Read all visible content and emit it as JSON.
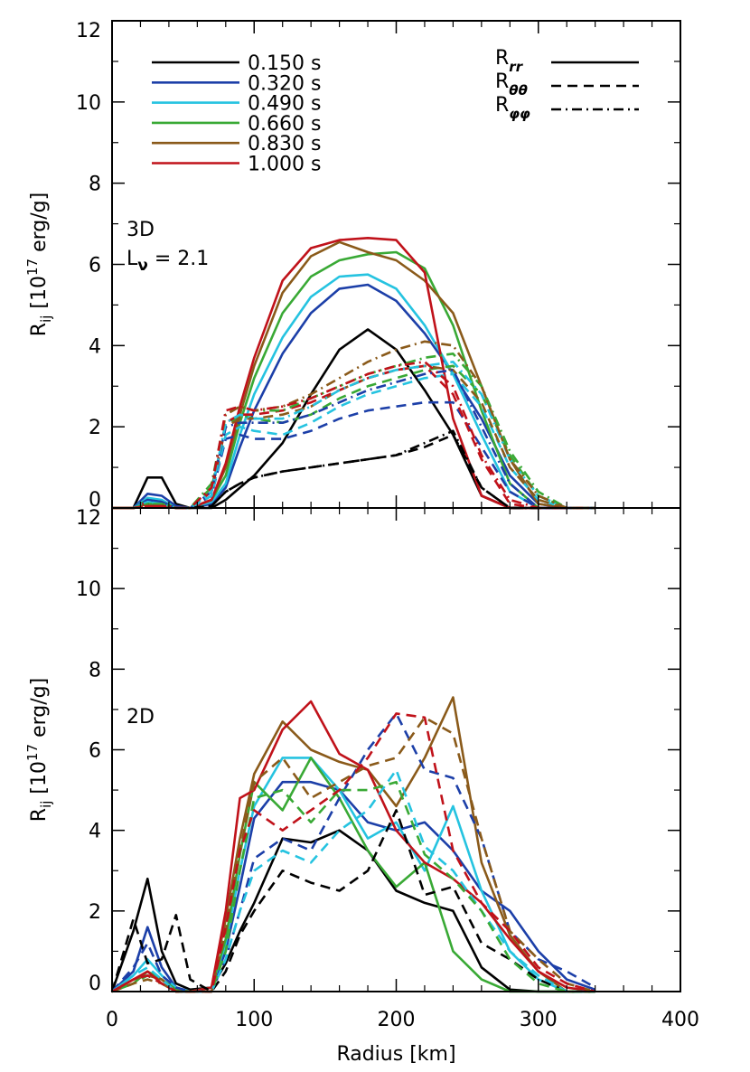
{
  "chart_data": [
    {
      "type": "line",
      "panel_label": "3D",
      "annotation": {
        "main": "L",
        "sub": "ν",
        "rest": " = 2.1"
      },
      "y_label": {
        "main": "R",
        "sub": "ij",
        "mid": " [10",
        "sup": "17",
        "end": " erg/g]"
      },
      "xlim": [
        0,
        400
      ],
      "xticks": [
        0,
        100,
        200,
        300,
        400
      ],
      "show_xtick_labels": false,
      "ylim": [
        0,
        12
      ],
      "yticks": [
        0,
        2,
        4,
        6,
        8,
        10,
        12
      ],
      "line_styles": [
        {
          "label": "R",
          "sub": "rr",
          "dash": "solid"
        },
        {
          "label": "R",
          "sub": "θθ",
          "dash": "dashed"
        },
        {
          "label": "R",
          "sub": "φφ",
          "dash": "dashdot"
        }
      ],
      "x": [
        0,
        15,
        25,
        35,
        45,
        55,
        70,
        80,
        90,
        100,
        120,
        140,
        160,
        180,
        200,
        220,
        240,
        260,
        280,
        300,
        320,
        340
      ],
      "series": [
        {
          "name": "0.150 s",
          "color": "#000000",
          "dash": "solid",
          "values": [
            0,
            0,
            0.75,
            0.75,
            0.1,
            0,
            0,
            0.2,
            0.5,
            0.8,
            1.6,
            2.8,
            3.9,
            4.4,
            3.9,
            2.9,
            1.8,
            0.3,
            0,
            0,
            0,
            0
          ]
        },
        {
          "name": "0.320 s",
          "color": "#1c3fa8",
          "dash": "solid",
          "values": [
            0,
            0,
            0.35,
            0.3,
            0.05,
            0,
            0.1,
            0.5,
            1.5,
            2.4,
            3.8,
            4.8,
            5.4,
            5.5,
            5.1,
            4.3,
            3.3,
            2.2,
            0.8,
            0.1,
            0,
            0
          ]
        },
        {
          "name": "0.490 s",
          "color": "#25c3e0",
          "dash": "solid",
          "values": [
            0,
            0,
            0.25,
            0.2,
            0,
            0,
            0.15,
            0.6,
            1.8,
            2.8,
            4.2,
            5.2,
            5.7,
            5.75,
            5.4,
            4.5,
            3.3,
            1.8,
            0.4,
            0,
            0,
            0
          ]
        },
        {
          "name": "0.660 s",
          "color": "#39a935",
          "dash": "solid",
          "values": [
            0,
            0,
            0.2,
            0.15,
            0,
            0,
            0.2,
            0.8,
            2.1,
            3.2,
            4.8,
            5.7,
            6.1,
            6.25,
            6.3,
            5.9,
            4.5,
            2.4,
            0.6,
            0,
            0,
            0
          ]
        },
        {
          "name": "0.830 s",
          "color": "#8a5a1a",
          "dash": "solid",
          "values": [
            0,
            0,
            0.1,
            0.1,
            0,
            0,
            0.2,
            1.0,
            2.3,
            3.5,
            5.3,
            6.2,
            6.55,
            6.3,
            6.1,
            5.6,
            4.8,
            3.0,
            1.2,
            0.1,
            0,
            0
          ]
        },
        {
          "name": "1.000 s",
          "color": "#c0121a",
          "dash": "solid",
          "values": [
            0,
            0,
            0.15,
            0.1,
            0,
            0,
            0.2,
            1.1,
            2.5,
            3.7,
            5.6,
            6.4,
            6.6,
            6.65,
            6.6,
            5.8,
            2.2,
            0.3,
            0,
            0,
            0,
            0
          ]
        },
        {
          "color": "#000000",
          "dash": "dashed",
          "values": [
            0,
            0,
            0.1,
            0.1,
            0,
            0,
            0.05,
            0.4,
            0.6,
            0.75,
            0.9,
            1.0,
            1.1,
            1.2,
            1.3,
            1.5,
            1.8,
            0.5,
            0,
            0,
            0,
            0
          ]
        },
        {
          "color": "#1c3fa8",
          "dash": "dashed",
          "values": [
            0,
            0,
            0.2,
            0.15,
            0,
            0,
            0.3,
            1.7,
            1.8,
            1.7,
            1.7,
            1.9,
            2.2,
            2.4,
            2.5,
            2.6,
            2.6,
            1.5,
            0.4,
            0,
            0,
            0
          ]
        },
        {
          "color": "#25c3e0",
          "dash": "dashed",
          "values": [
            0,
            0,
            0.15,
            0.1,
            0,
            0,
            0.3,
            1.8,
            2.0,
            1.9,
            1.8,
            2.1,
            2.5,
            2.8,
            3.0,
            3.2,
            3.3,
            2.5,
            1.0,
            0.2,
            0,
            0
          ]
        },
        {
          "color": "#39a935",
          "dash": "dashed",
          "values": [
            0,
            0,
            0.1,
            0.1,
            0,
            0,
            0.5,
            2.0,
            2.3,
            2.2,
            2.1,
            2.3,
            2.7,
            3.0,
            3.2,
            3.4,
            3.5,
            2.8,
            1.3,
            0.3,
            0,
            0
          ]
        },
        {
          "color": "#8a5a1a",
          "dash": "dashed",
          "values": [
            0,
            0,
            0.05,
            0.05,
            0,
            0,
            0.4,
            2.0,
            2.2,
            2.2,
            2.3,
            2.5,
            2.9,
            3.2,
            3.4,
            3.5,
            3.4,
            2.6,
            1.0,
            0.2,
            0,
            0
          ]
        },
        {
          "color": "#c0121a",
          "dash": "dashed",
          "values": [
            0,
            0,
            0.05,
            0.05,
            0,
            0,
            0.4,
            2.1,
            2.3,
            2.3,
            2.4,
            2.6,
            2.9,
            3.2,
            3.4,
            3.5,
            2.8,
            1.2,
            0.1,
            0,
            0,
            0
          ]
        },
        {
          "color": "#000000",
          "dash": "dashdot",
          "values": [
            0,
            0,
            0.1,
            0.1,
            0,
            0,
            0.05,
            0.4,
            0.6,
            0.75,
            0.9,
            1.0,
            1.1,
            1.2,
            1.3,
            1.6,
            1.9,
            0.5,
            0,
            0,
            0,
            0
          ]
        },
        {
          "color": "#1c3fa8",
          "dash": "dashdot",
          "values": [
            0,
            0,
            0.2,
            0.15,
            0,
            0,
            0.4,
            2.0,
            2.1,
            2.1,
            2.1,
            2.3,
            2.6,
            2.9,
            3.1,
            3.3,
            3.4,
            2.0,
            0.6,
            0,
            0,
            0
          ]
        },
        {
          "color": "#25c3e0",
          "dash": "dashdot",
          "values": [
            0,
            0,
            0.15,
            0.1,
            0,
            0,
            0.4,
            2.1,
            2.3,
            2.2,
            2.2,
            2.5,
            2.9,
            3.2,
            3.4,
            3.5,
            3.6,
            2.8,
            1.2,
            0.3,
            0,
            0
          ]
        },
        {
          "color": "#39a935",
          "dash": "dashdot",
          "values": [
            0,
            0,
            0.1,
            0.1,
            0,
            0,
            0.6,
            2.3,
            2.5,
            2.4,
            2.4,
            2.7,
            3.0,
            3.3,
            3.5,
            3.7,
            3.8,
            3.0,
            1.4,
            0.4,
            0,
            0
          ]
        },
        {
          "color": "#8a5a1a",
          "dash": "dashdot",
          "values": [
            0,
            0,
            0.05,
            0.05,
            0,
            0,
            0.5,
            2.3,
            2.5,
            2.4,
            2.5,
            2.8,
            3.2,
            3.6,
            3.9,
            4.1,
            4.0,
            3.0,
            1.2,
            0.3,
            0,
            0
          ]
        },
        {
          "color": "#c0121a",
          "dash": "dashdot",
          "values": [
            0,
            0,
            0.05,
            0.05,
            0,
            0,
            0.5,
            2.4,
            2.5,
            2.4,
            2.5,
            2.7,
            3.0,
            3.3,
            3.5,
            3.6,
            3.0,
            1.3,
            0.2,
            0,
            0,
            0
          ]
        }
      ]
    },
    {
      "type": "line",
      "panel_label": "2D",
      "y_label": {
        "main": "R",
        "sub": "ij",
        "mid": " [10",
        "sup": "17",
        "end": " erg/g]"
      },
      "x_label": "Radius [km]",
      "xlim": [
        0,
        400
      ],
      "xticks": [
        0,
        100,
        200,
        300,
        400
      ],
      "show_xtick_labels": true,
      "ylim": [
        0,
        12
      ],
      "yticks": [
        0,
        2,
        4,
        6,
        8,
        10,
        12
      ],
      "x": [
        0,
        15,
        25,
        35,
        45,
        55,
        70,
        80,
        90,
        100,
        120,
        140,
        160,
        180,
        200,
        220,
        240,
        260,
        280,
        300,
        320,
        340
      ],
      "series": [
        {
          "color": "#000000",
          "dash": "solid",
          "values": [
            0,
            1.5,
            2.8,
            1.0,
            0.2,
            0.05,
            0.1,
            0.7,
            1.5,
            2.2,
            3.8,
            3.7,
            4.0,
            3.5,
            2.5,
            2.2,
            2.0,
            0.6,
            0.05,
            0,
            0,
            0
          ]
        },
        {
          "color": "#1c3fa8",
          "dash": "solid",
          "values": [
            0,
            0.5,
            1.6,
            0.6,
            0.1,
            0,
            0.1,
            1.0,
            2.6,
            4.3,
            5.2,
            5.2,
            5.0,
            4.2,
            4.0,
            4.2,
            3.5,
            2.5,
            2.0,
            1.0,
            0.3,
            0.05
          ]
        },
        {
          "color": "#25c3e0",
          "dash": "solid",
          "values": [
            0,
            0.4,
            0.8,
            0.4,
            0.1,
            0,
            0.1,
            1.2,
            3.0,
            4.6,
            5.8,
            5.8,
            5.0,
            3.8,
            4.2,
            3.0,
            4.6,
            2.5,
            1.0,
            0.3,
            0,
            0
          ]
        },
        {
          "color": "#39a935",
          "dash": "solid",
          "values": [
            0,
            0.2,
            0.5,
            0.3,
            0.05,
            0,
            0.1,
            1.3,
            3.4,
            5.2,
            4.5,
            5.8,
            4.8,
            3.5,
            2.6,
            3.2,
            1.0,
            0.3,
            0,
            0,
            0,
            0
          ]
        },
        {
          "color": "#8a5a1a",
          "dash": "solid",
          "values": [
            0,
            0.3,
            0.4,
            0.3,
            0,
            0,
            0.1,
            1.8,
            3.8,
            5.4,
            6.7,
            6.0,
            5.7,
            5.5,
            4.6,
            5.8,
            7.3,
            3.2,
            1.4,
            0.5,
            0,
            0
          ]
        },
        {
          "color": "#c0121a",
          "dash": "solid",
          "values": [
            0,
            0.3,
            0.5,
            0.2,
            0,
            0,
            0.1,
            2.0,
            4.8,
            5.0,
            6.5,
            7.2,
            5.9,
            5.5,
            4.0,
            3.2,
            2.8,
            2.2,
            1.3,
            0.5,
            0.1,
            0
          ]
        },
        {
          "color": "#000000",
          "dash": "dashed",
          "values": [
            0,
            1.8,
            0.7,
            0.8,
            1.9,
            0.3,
            0,
            0.5,
            1.4,
            2.0,
            3.0,
            2.7,
            2.5,
            3.0,
            4.5,
            2.4,
            2.6,
            1.2,
            0.8,
            0.3,
            0,
            0
          ]
        },
        {
          "color": "#1c3fa8",
          "dash": "dashed",
          "values": [
            0,
            0.6,
            1.2,
            0.4,
            0.1,
            0,
            0,
            0.8,
            2.0,
            3.3,
            3.8,
            3.5,
            4.8,
            6.0,
            6.9,
            5.5,
            5.3,
            3.8,
            1.5,
            0.8,
            0.5,
            0.1
          ]
        },
        {
          "color": "#25c3e0",
          "dash": "dashed",
          "values": [
            0,
            0.4,
            0.6,
            0.3,
            0,
            0,
            0,
            0.8,
            2.0,
            3.0,
            3.5,
            3.2,
            4.0,
            4.5,
            5.5,
            3.6,
            3.0,
            2.0,
            1.0,
            0.4,
            0,
            0
          ]
        },
        {
          "color": "#39a935",
          "dash": "dashed",
          "values": [
            0,
            0.2,
            0.4,
            0.2,
            0,
            0,
            0,
            1.0,
            3.0,
            4.8,
            5.0,
            4.2,
            5.0,
            5.0,
            5.2,
            3.4,
            2.8,
            2.0,
            0.8,
            0.2,
            0,
            0
          ]
        },
        {
          "color": "#8a5a1a",
          "dash": "dashed",
          "values": [
            0,
            0.2,
            0.3,
            0.2,
            0,
            0,
            0,
            1.5,
            3.5,
            5.2,
            5.8,
            4.8,
            5.2,
            5.6,
            5.8,
            6.8,
            6.4,
            3.8,
            1.5,
            0.8,
            0.2,
            0
          ]
        },
        {
          "color": "#c0121a",
          "dash": "dashed",
          "values": [
            0,
            0.3,
            0.4,
            0.2,
            0,
            0,
            0,
            1.6,
            3.5,
            4.5,
            4.0,
            4.5,
            5.0,
            5.8,
            6.9,
            6.8,
            3.5,
            2.2,
            1.5,
            0.6,
            0.2,
            0
          ]
        }
      ]
    }
  ]
}
